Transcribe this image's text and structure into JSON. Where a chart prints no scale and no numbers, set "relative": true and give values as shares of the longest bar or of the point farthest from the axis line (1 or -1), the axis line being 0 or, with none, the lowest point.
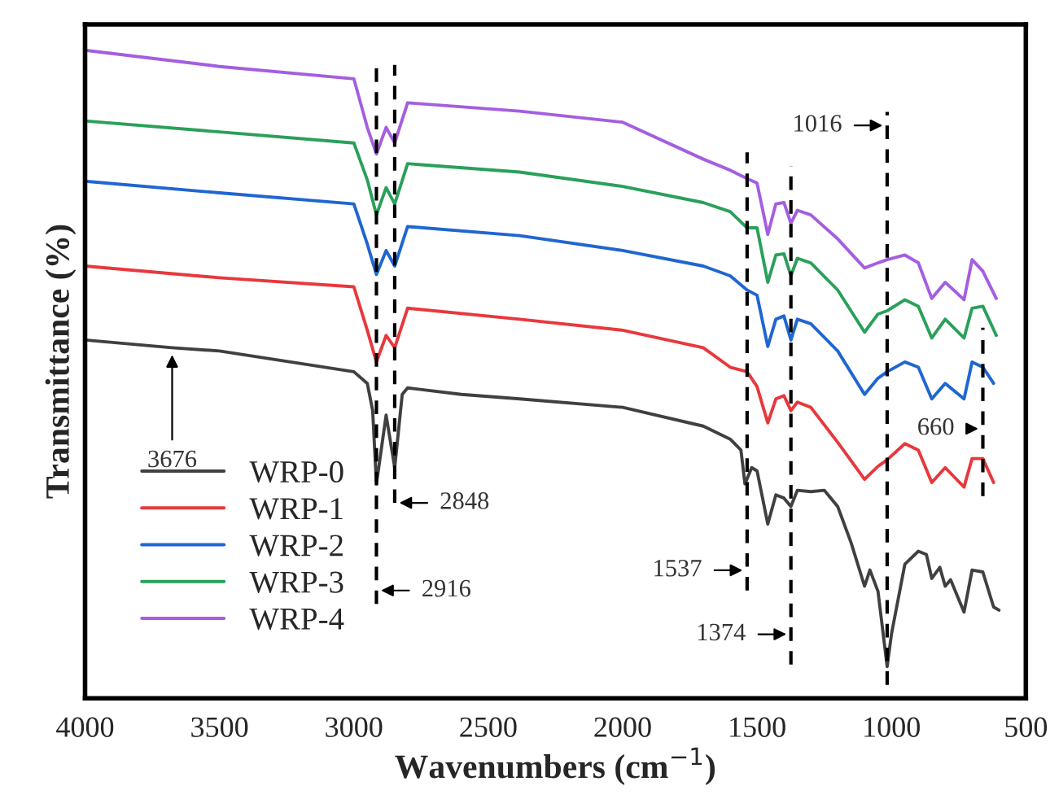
{
  "chart_data": {
    "type": "line",
    "relative": true,
    "xlabel": "Wavenumbers (cm$^{−1}$)",
    "ylabel": "Transmittance (%)",
    "xlim": [
      4000,
      500
    ],
    "xticks": [
      4000,
      3500,
      3000,
      2500,
      2000,
      1500,
      1000,
      500
    ],
    "grid": false,
    "legend": "bottom left",
    "line_style": "solid",
    "marker": "none",
    "series": [
      {
        "name": "WRP-0",
        "color": "#404040",
        "x": [
          4000,
          3676,
          3500,
          3000,
          2950,
          2930,
          2916,
          2880,
          2848,
          2820,
          2800,
          2600,
          2383,
          2000,
          1700,
          1600,
          1560,
          1545,
          1520,
          1500,
          1460,
          1430,
          1400,
          1374,
          1350,
          1300,
          1250,
          1200,
          1150,
          1100,
          1080,
          1050,
          1016,
          1000,
          950,
          900,
          870,
          850,
          820,
          800,
          780,
          730,
          700,
          660,
          620,
          600
        ],
        "values": [
          0.553,
          0.541,
          0.536,
          0.504,
          0.486,
          0.444,
          0.331,
          0.437,
          0.356,
          0.469,
          0.479,
          0.469,
          0.462,
          0.449,
          0.42,
          0.4,
          0.383,
          0.331,
          0.356,
          0.351,
          0.269,
          0.314,
          0.309,
          0.296,
          0.321,
          0.319,
          0.321,
          0.296,
          0.24,
          0.173,
          0.198,
          0.165,
          0.049,
          0.099,
          0.207,
          0.227,
          0.222,
          0.185,
          0.202,
          0.173,
          0.183,
          0.133,
          0.198,
          0.195,
          0.141,
          0.136
        ]
      },
      {
        "name": "WRP-1",
        "color": "#e8383d",
        "x": [
          4000,
          3500,
          3000,
          2950,
          2916,
          2880,
          2848,
          2800,
          2383,
          2000,
          1700,
          1600,
          1537,
          1500,
          1460,
          1430,
          1400,
          1374,
          1350,
          1300,
          1200,
          1100,
          1050,
          1016,
          950,
          900,
          850,
          800,
          730,
          700,
          660,
          620
        ],
        "values": [
          0.667,
          0.649,
          0.635,
          0.568,
          0.519,
          0.56,
          0.541,
          0.602,
          0.585,
          0.568,
          0.541,
          0.511,
          0.504,
          0.481,
          0.425,
          0.462,
          0.467,
          0.444,
          0.457,
          0.449,
          0.395,
          0.338,
          0.358,
          0.368,
          0.393,
          0.383,
          0.333,
          0.356,
          0.326,
          0.37,
          0.37,
          0.333
        ]
      },
      {
        "name": "WRP-2",
        "color": "#1f66d1",
        "x": [
          4000,
          3500,
          3000,
          2950,
          2916,
          2880,
          2848,
          2800,
          2383,
          2000,
          1700,
          1600,
          1537,
          1500,
          1460,
          1430,
          1400,
          1374,
          1350,
          1300,
          1200,
          1100,
          1050,
          1016,
          950,
          900,
          850,
          800,
          730,
          700,
          660,
          620
        ],
        "values": [
          0.798,
          0.78,
          0.763,
          0.701,
          0.654,
          0.691,
          0.667,
          0.728,
          0.714,
          0.691,
          0.667,
          0.652,
          0.63,
          0.622,
          0.543,
          0.585,
          0.59,
          0.553,
          0.585,
          0.578,
          0.536,
          0.469,
          0.494,
          0.504,
          0.519,
          0.511,
          0.462,
          0.486,
          0.462,
          0.519,
          0.511,
          0.486
        ]
      },
      {
        "name": "WRP-3",
        "color": "#2aa05a",
        "x": [
          4000,
          3500,
          3000,
          2950,
          2916,
          2880,
          2848,
          2800,
          2383,
          2000,
          1700,
          1600,
          1537,
          1500,
          1460,
          1430,
          1400,
          1374,
          1350,
          1300,
          1200,
          1100,
          1050,
          1016,
          950,
          900,
          850,
          800,
          730,
          700,
          660,
          610
        ],
        "values": [
          0.891,
          0.874,
          0.857,
          0.8,
          0.746,
          0.788,
          0.763,
          0.825,
          0.812,
          0.79,
          0.765,
          0.751,
          0.726,
          0.726,
          0.642,
          0.684,
          0.686,
          0.652,
          0.679,
          0.672,
          0.63,
          0.565,
          0.593,
          0.598,
          0.615,
          0.605,
          0.556,
          0.585,
          0.556,
          0.602,
          0.605,
          0.56
        ]
      },
      {
        "name": "WRP-4",
        "color": "#a45ee0",
        "x": [
          4000,
          3500,
          3000,
          2950,
          2916,
          2880,
          2848,
          2800,
          2383,
          2000,
          1700,
          1600,
          1537,
          1500,
          1460,
          1430,
          1400,
          1374,
          1350,
          1300,
          1200,
          1100,
          1050,
          1016,
          950,
          900,
          850,
          800,
          730,
          700,
          660,
          610
        ],
        "values": [
          1.0,
          0.975,
          0.956,
          0.881,
          0.84,
          0.881,
          0.857,
          0.919,
          0.906,
          0.889,
          0.832,
          0.815,
          0.802,
          0.795,
          0.716,
          0.763,
          0.765,
          0.733,
          0.753,
          0.746,
          0.709,
          0.664,
          0.672,
          0.677,
          0.684,
          0.672,
          0.617,
          0.642,
          0.615,
          0.677,
          0.659,
          0.617
        ]
      }
    ],
    "ref_lines": [
      {
        "axis": "x",
        "value": 2916,
        "label": "2916",
        "line_style": "dashed",
        "color": "#000000"
      },
      {
        "axis": "x",
        "value": 2848,
        "label": "2848",
        "line_style": "dashed",
        "color": "#000000"
      },
      {
        "axis": "x",
        "value": 1537,
        "label": "1537",
        "line_style": "dashed",
        "color": "#000000"
      },
      {
        "axis": "x",
        "value": 1374,
        "label": "1374",
        "line_style": "dashed",
        "color": "#000000"
      },
      {
        "axis": "x",
        "value": 1016,
        "label": "1016",
        "line_style": "dashed",
        "color": "#000000"
      },
      {
        "axis": "x",
        "value": 660,
        "label": "660",
        "line_style": "dashed",
        "color": "#000000"
      }
    ],
    "annotations": [
      {
        "text": "3676",
        "x": 3676,
        "y": 0.53
      }
    ]
  }
}
